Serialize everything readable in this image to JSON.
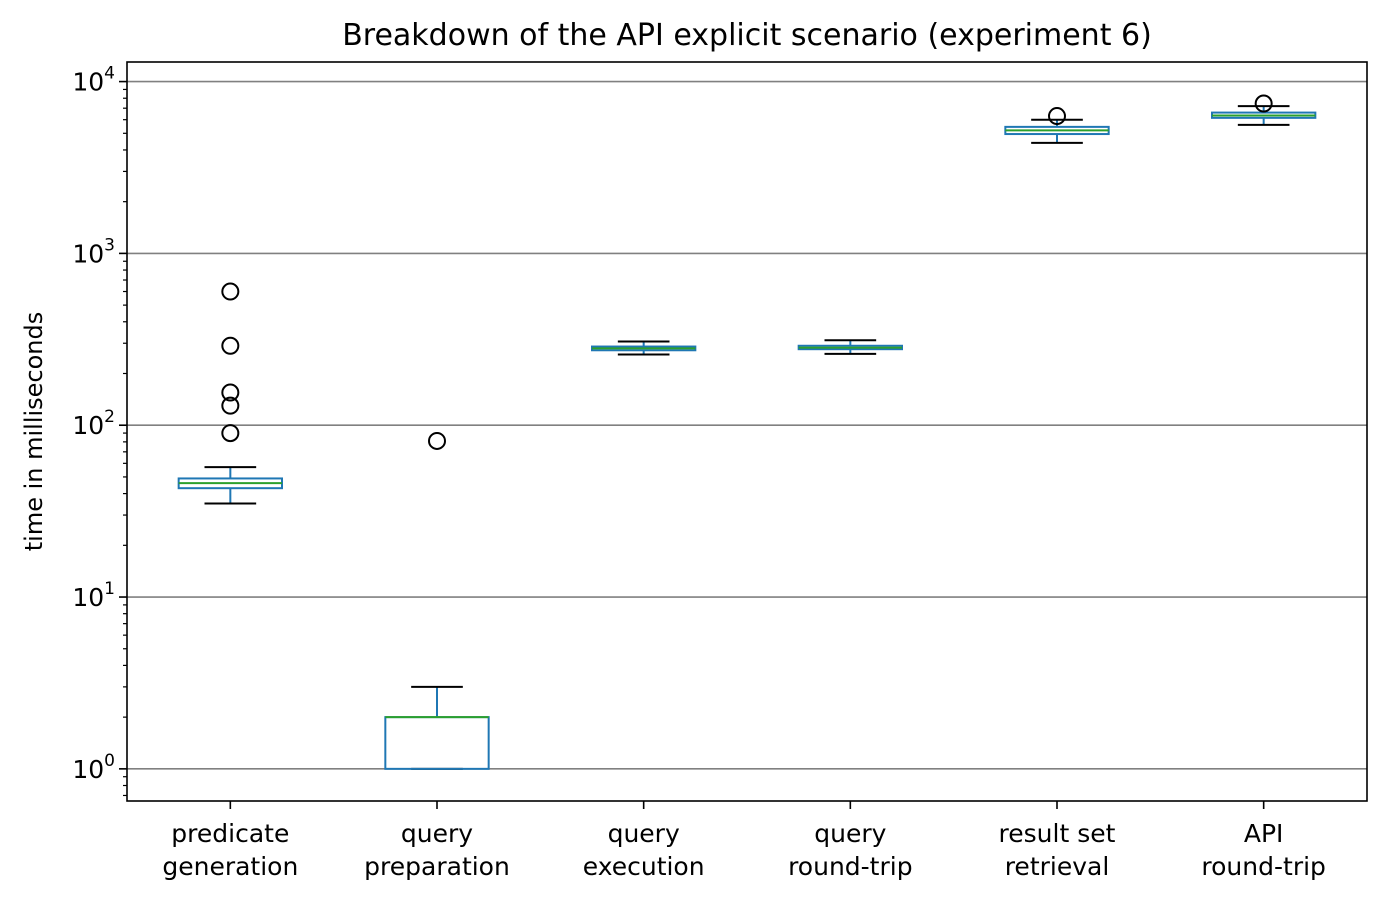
{
  "chart_data": {
    "type": "box",
    "title": "Breakdown of the API explicit scenario (experiment 6)",
    "xlabel": "",
    "ylabel": "time in milliseconds",
    "yscale": "log",
    "ylim": [
      0.65,
      13000
    ],
    "grid": {
      "y_major": true,
      "x": false
    },
    "y_ticks": [
      {
        "base": "10",
        "exp": "0",
        "value": 1
      },
      {
        "base": "10",
        "exp": "1",
        "value": 10
      },
      {
        "base": "10",
        "exp": "2",
        "value": 100
      },
      {
        "base": "10",
        "exp": "3",
        "value": 1000
      },
      {
        "base": "10",
        "exp": "4",
        "value": 10000
      }
    ],
    "categories": [
      {
        "lines": [
          "predicate",
          "generation"
        ]
      },
      {
        "lines": [
          "query",
          "preparation"
        ]
      },
      {
        "lines": [
          "query",
          "execution"
        ]
      },
      {
        "lines": [
          "query",
          "round-trip"
        ]
      },
      {
        "lines": [
          "result set",
          "retrieval"
        ]
      },
      {
        "lines": [
          "API",
          "round-trip"
        ]
      }
    ],
    "boxes": [
      {
        "whislo": 35,
        "q1": 43,
        "med": 46,
        "q3": 49,
        "whishi": 57,
        "fliers": [
          90,
          130,
          155,
          290,
          600
        ]
      },
      {
        "whislo": 1,
        "q1": 1,
        "med": 2,
        "q3": 2,
        "whishi": 3,
        "fliers": [
          81
        ]
      },
      {
        "whislo": 258,
        "q1": 273,
        "med": 280,
        "q3": 287,
        "whishi": 307,
        "fliers": []
      },
      {
        "whislo": 260,
        "q1": 277,
        "med": 283,
        "q3": 290,
        "whishi": 312,
        "fliers": []
      },
      {
        "whislo": 4400,
        "q1": 4950,
        "med": 5200,
        "q3": 5450,
        "whishi": 6000,
        "fliers": [
          6300
        ]
      },
      {
        "whislo": 5600,
        "q1": 6150,
        "med": 6350,
        "q3": 6600,
        "whishi": 7200,
        "fliers": [
          7450
        ]
      }
    ],
    "colors": {
      "box": "#1f77b4",
      "median": "#2ca02c",
      "whisker_cap": "#000000",
      "grid": "#808080"
    }
  }
}
